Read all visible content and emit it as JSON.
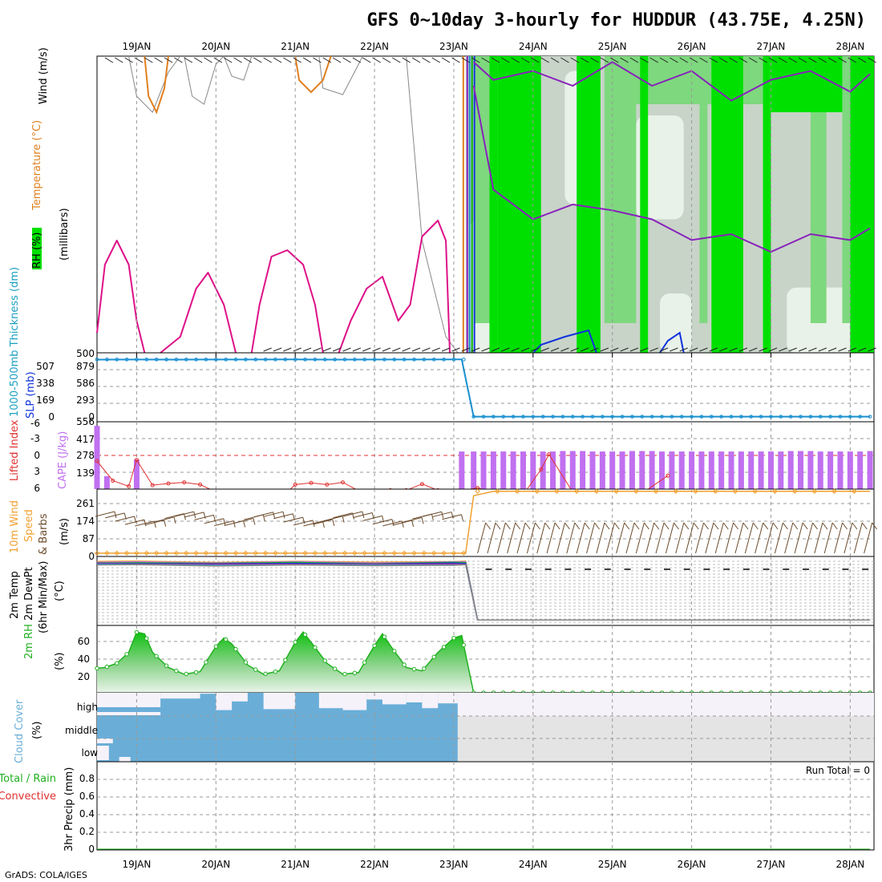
{
  "title": "GFS 0~10day 3-hourly for HUDDUR (43.75E, 4.25N)",
  "credit": "GrADS: COLA/IGES",
  "run_total": "Run Total = 0",
  "colors": {
    "rh_green": "#00e000",
    "rh_mid": "#7ed87e",
    "rh_grey": "#c8d4c8",
    "rh_light": "#e8f2e8",
    "temp_magenta": "#dd1188",
    "temp_orange": "#e08020",
    "temp_purple": "#8822bb",
    "temp_blue": "#1133dd",
    "cyan": "#1a8fd0",
    "cape_bar": "#c070f0",
    "lifted_red": "#e03030",
    "wind_orange": "#f0a030",
    "barb_brown": "#6b4a2a",
    "rh2m_green": "#20b020",
    "cloud_blue": "#6aaed8",
    "cloud_grey": "#e4e4e4"
  },
  "chart_data": [
    {
      "type": "area",
      "name": "upper-air-cross-section",
      "ylabels": [
        "RH (%)",
        "Temperature (°C)",
        "Wind (m/s)",
        "(millibars)"
      ],
      "x_ticks": [
        "19JAN",
        "20JAN",
        "21JAN",
        "22JAN",
        "23JAN",
        "24JAN",
        "25JAN",
        "26JAN",
        "27JAN",
        "28JAN"
      ],
      "data_available_until": "23JAN",
      "purple_isotherms": [
        {
          "x": [
            23.25,
            23.5,
            24,
            24.5,
            25,
            25.5,
            26,
            26.5,
            27,
            27.5,
            28,
            28.25
          ],
          "y": [
            0.1,
            0.45,
            0.55,
            0.5,
            0.52,
            0.55,
            0.62,
            0.6,
            0.66,
            0.6,
            0.62,
            0.58
          ]
        },
        {
          "x": [
            23.25,
            23.5,
            24,
            24.5,
            25,
            25.5,
            26,
            26.5,
            27,
            27.5,
            28,
            28.25
          ],
          "y": [
            0.02,
            0.08,
            0.05,
            0.1,
            0.02,
            0.1,
            0.05,
            0.15,
            0.08,
            0.05,
            0.12,
            0.06
          ]
        }
      ]
    },
    {
      "type": "line",
      "name": "thickness-slp",
      "ylabels": [
        "1000-500mb Thickness (dm)",
        "SLP (mb)"
      ],
      "y_ticks_left": [
        "507",
        "338",
        "169",
        "0"
      ],
      "y_ticks_right": [
        "879",
        "586",
        "293",
        "0"
      ],
      "y_top_label": "500",
      "x": [
        18.5,
        19,
        19.5,
        20,
        20.5,
        21,
        21.5,
        22,
        22.5,
        23,
        23.1,
        23.25,
        24,
        24.5,
        25,
        25.5,
        26,
        26.5,
        27,
        27.5,
        28,
        28.25
      ],
      "values": [
        940,
        942,
        941,
        943,
        942,
        944,
        941,
        943,
        942,
        944,
        944,
        5,
        5,
        5,
        5,
        5,
        5,
        5,
        5,
        5,
        5,
        5
      ],
      "ylim": [
        0,
        1000
      ]
    },
    {
      "type": "bar",
      "name": "cape-lifted-index",
      "ylabels": [
        "Lifted Index",
        "CAPE (J/kg)"
      ],
      "y_ticks_left": [
        "-6",
        "-3",
        "0",
        "3",
        "6"
      ],
      "y_ticks_right": [
        "556",
        "417",
        "278",
        "139"
      ],
      "cape_x": [
        18.5,
        18.625,
        19,
        23.1,
        23.25,
        23.375,
        23.5,
        23.625,
        23.75,
        23.875,
        24,
        24.125,
        24.25,
        24.375,
        24.5,
        24.625,
        24.75,
        24.875,
        25,
        25.125,
        25.25,
        25.375,
        25.5,
        25.625,
        25.75,
        25.875,
        26,
        26.125,
        26.25,
        26.375,
        26.5,
        26.625,
        26.75,
        26.875,
        27,
        27.125,
        27.25,
        27.375,
        27.5,
        27.625,
        27.75,
        27.875,
        28,
        28.125,
        28.25
      ],
      "cape": [
        535,
        110,
        250,
        318,
        318,
        318,
        318,
        318,
        318,
        318,
        318,
        318,
        318,
        322,
        322,
        322,
        318,
        318,
        318,
        318,
        322,
        322,
        322,
        318,
        318,
        318,
        318,
        318,
        318,
        318,
        318,
        318,
        318,
        318,
        318,
        318,
        322,
        322,
        322,
        318,
        318,
        318,
        318,
        318,
        322
      ],
      "lifted_x": [
        18.5,
        18.7,
        18.9,
        19,
        19.2,
        19.4,
        19.6,
        19.8,
        20,
        20.3,
        20.9,
        21.0,
        21.2,
        21.4,
        21.6,
        21.8,
        22.0,
        22.2,
        22.4,
        22.6,
        22.8,
        23.0,
        23.3,
        23.5,
        23.9,
        24.1,
        24.2,
        24.5,
        24.9,
        25.4,
        25.7
      ],
      "lifted": [
        1,
        4.5,
        5.5,
        0.8,
        5.3,
        5.0,
        4.8,
        5.2,
        6.5,
        6.5,
        6.5,
        5.2,
        4.9,
        5.2,
        4.8,
        6.3,
        6.5,
        6.2,
        6.2,
        5.1,
        6.2,
        6.5,
        5.8,
        6.5,
        6.5,
        2.5,
        -0.2,
        6.5,
        6.5,
        6.5,
        3.6
      ],
      "cape_ylim": [
        0,
        556
      ],
      "li_ylim": [
        -6,
        6
      ]
    },
    {
      "type": "line",
      "name": "10m-wind",
      "ylabels": [
        "10m Wind",
        "Speed",
        "& Barbs",
        "(m/s)"
      ],
      "y_ticks": [
        "261",
        "174",
        "87",
        "0"
      ],
      "x": [
        18.5,
        19,
        19.5,
        20,
        20.5,
        21,
        21.5,
        22,
        22.5,
        23,
        23.15,
        23.25,
        23.5,
        24,
        24.5,
        25,
        25.5,
        26,
        26.5,
        27,
        27.5,
        28,
        28.25
      ],
      "values": [
        8,
        8,
        8,
        8,
        8,
        8,
        8,
        8,
        8,
        8,
        8,
        270,
        290,
        290,
        290,
        290,
        290,
        290,
        290,
        290,
        290,
        290,
        290
      ],
      "ylim": [
        0,
        300
      ]
    },
    {
      "type": "line",
      "name": "2m-temperature",
      "ylabels": [
        "2m Temp",
        "2m DewPt",
        "(6hr Min/Max)",
        "(°C)"
      ],
      "x": [
        18.5,
        19,
        20,
        21,
        22,
        23,
        23.15,
        23.3,
        24,
        25,
        26,
        27,
        28,
        28.25
      ],
      "values": [
        95,
        95,
        94,
        95,
        94,
        95,
        95,
        8,
        8,
        8,
        8,
        8,
        8,
        8
      ],
      "ylim": [
        0,
        100
      ]
    },
    {
      "type": "area",
      "name": "2m-rh",
      "ylabels": [
        "2m RH",
        "(%)"
      ],
      "y_ticks": [
        "60",
        "40",
        "20"
      ],
      "x": [
        18.5,
        18.6,
        18.75,
        18.9,
        19.0,
        19.1,
        19.2,
        19.4,
        19.6,
        19.8,
        20.0,
        20.1,
        20.2,
        20.4,
        20.6,
        20.8,
        21.0,
        21.1,
        21.2,
        21.4,
        21.6,
        21.8,
        22.0,
        22.1,
        22.2,
        22.4,
        22.6,
        22.8,
        23.0,
        23.1,
        23.25,
        24,
        25,
        26,
        27,
        28,
        28.25
      ],
      "values": [
        29,
        30,
        35,
        48,
        72,
        70,
        48,
        30,
        22,
        25,
        55,
        65,
        58,
        33,
        22,
        26,
        60,
        72,
        60,
        35,
        22,
        24,
        56,
        70,
        56,
        30,
        26,
        48,
        65,
        68,
        0,
        0,
        0,
        0,
        0,
        0,
        0
      ],
      "ylim": [
        0,
        80
      ]
    },
    {
      "type": "bar",
      "name": "cloud-cover",
      "ylabels": [
        "Cloud Cover",
        "(%)"
      ],
      "y_ticks": [
        "high",
        "middle",
        "low"
      ],
      "data_available_until": "23JAN"
    },
    {
      "type": "line",
      "name": "3hr-precip",
      "ylabels": [
        "Total / Rain",
        "Convective",
        "3hr Precip (mm)"
      ],
      "y_ticks": [
        "0.8",
        "0.6",
        "0.4",
        "0.2",
        "0"
      ],
      "x": [
        18.5,
        28.25
      ],
      "values": [
        0,
        0
      ],
      "ylim": [
        0,
        1
      ]
    }
  ]
}
